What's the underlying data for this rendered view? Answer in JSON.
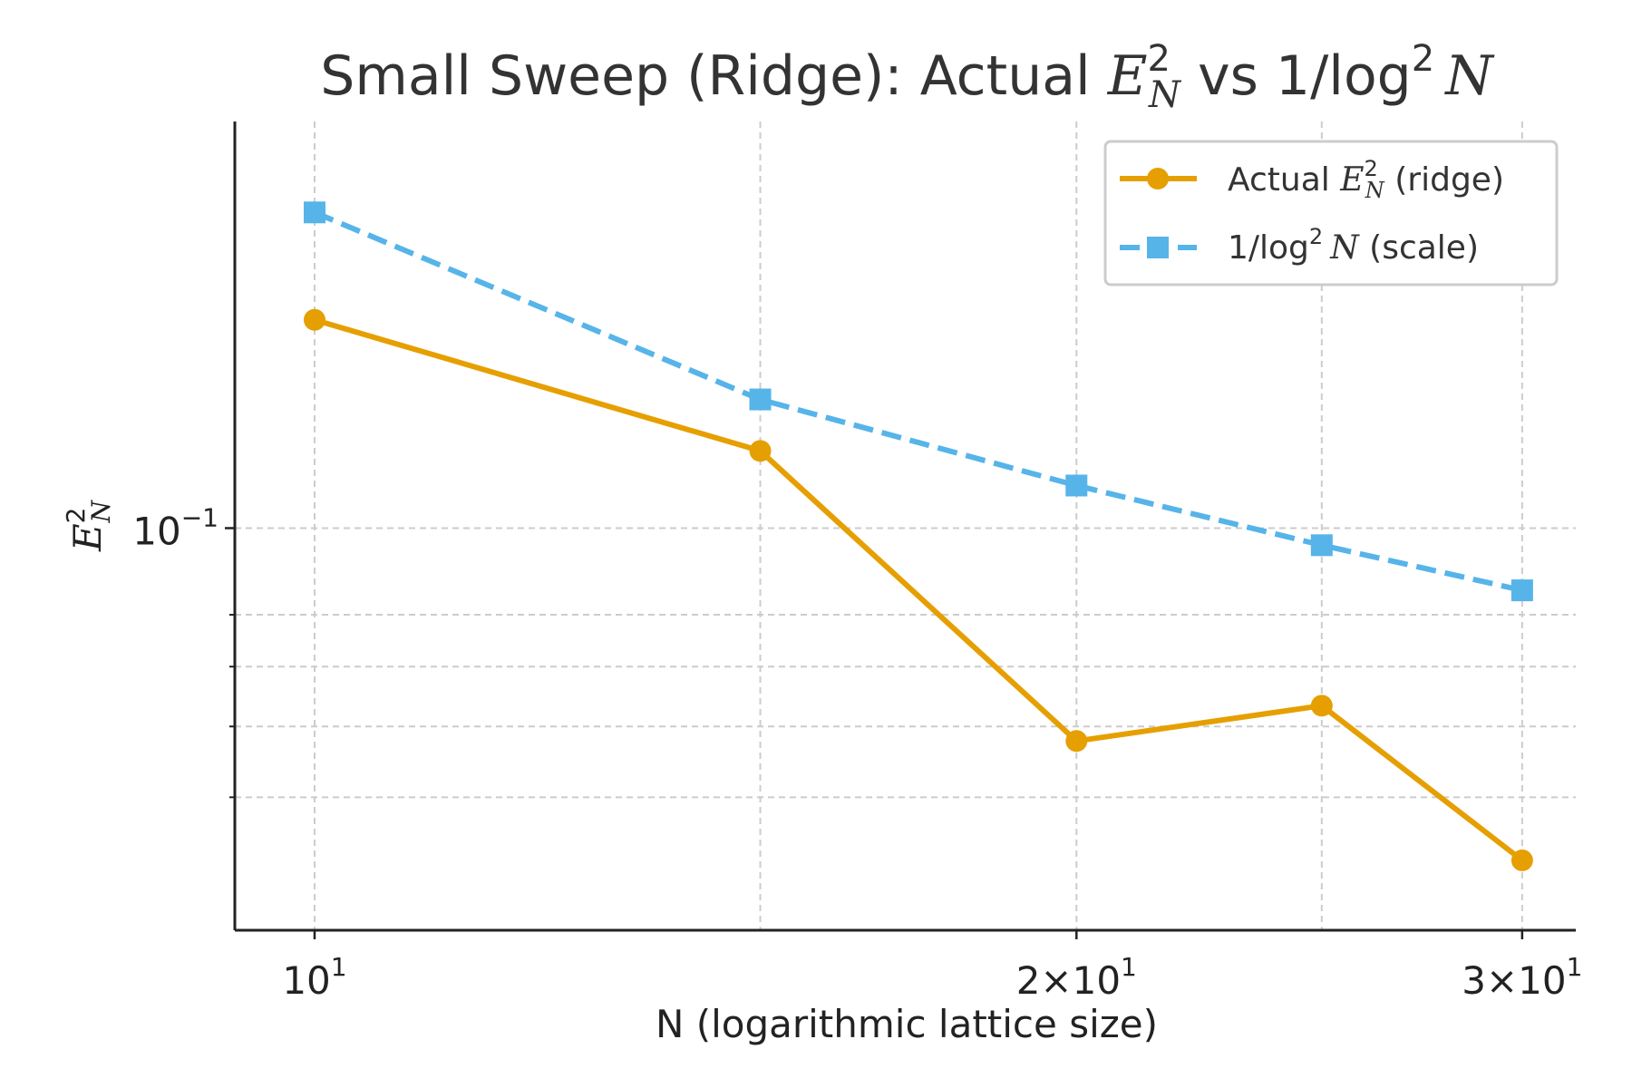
{
  "chart_data": {
    "type": "line",
    "title_parts": [
      "Small Sweep (Ridge): Actual ",
      "E",
      "2",
      "N",
      " vs 1/log",
      "2",
      "N"
    ],
    "xlabel": "N (logarithmic lattice size)",
    "ylabel_parts": [
      "E",
      "2",
      "N"
    ],
    "x": [
      10,
      15,
      20,
      25,
      30
    ],
    "xscale": "log",
    "yscale": "log",
    "xlim": [
      9.3,
      31.5
    ],
    "ylim": [
      0.0355,
      0.285
    ],
    "x_ticks": [
      {
        "value": 10,
        "base": "10",
        "exp": "1"
      },
      {
        "value": 20,
        "base": "2×10",
        "exp": "1"
      },
      {
        "value": 30,
        "base": "3×10",
        "exp": "1"
      }
    ],
    "y_ticks": [
      {
        "value": 0.1,
        "base": "10",
        "exp": "−1"
      }
    ],
    "y_minor_ticks": [
      0.05,
      0.06,
      0.07,
      0.08
    ],
    "grid": true,
    "legend_position": "upper right",
    "series": [
      {
        "key": "actual",
        "legend_parts": [
          "Actual ",
          "E",
          "2",
          "N",
          " (ridge)"
        ],
        "values": [
          0.171,
          0.122,
          0.0578,
          0.0633,
          0.0425
        ],
        "color": "#E69F00",
        "marker": "circle",
        "line_style": "solid"
      },
      {
        "key": "scale",
        "legend_parts": [
          "1/log",
          "2",
          "N",
          " (scale)"
        ],
        "values": [
          0.2255,
          0.1393,
          0.1116,
          0.0957,
          0.0852
        ],
        "color": "#56B4E9",
        "marker": "square",
        "line_style": "dashed"
      }
    ]
  }
}
